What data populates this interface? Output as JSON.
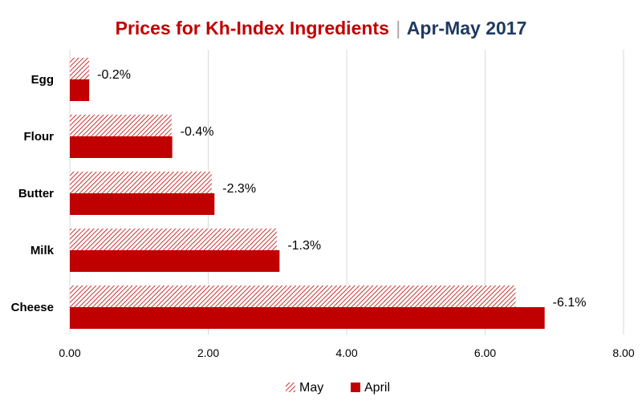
{
  "title": {
    "main": "Prices for Kh-Index Ingredients",
    "separator": "|",
    "period": "Apr-May 2017"
  },
  "chart_data": {
    "type": "bar",
    "orientation": "horizontal",
    "categories": [
      "Egg",
      "Flour",
      "Butter",
      "Milk",
      "Cheese"
    ],
    "series": [
      {
        "name": "May",
        "values": [
          0.28,
          1.47,
          2.05,
          2.99,
          6.44
        ],
        "color": "#c00000",
        "pattern": "diagonal-hatch"
      },
      {
        "name": "April",
        "values": [
          0.28,
          1.48,
          2.09,
          3.03,
          6.86
        ],
        "color": "#c00000",
        "pattern": "solid"
      }
    ],
    "data_labels": [
      "-0.2%",
      "-0.4%",
      "-2.3%",
      "-1.3%",
      "-6.1%"
    ],
    "x_ticks": [
      "0.00",
      "2.00",
      "4.00",
      "6.00",
      "8.00"
    ],
    "xlim": [
      0,
      8
    ],
    "grid": "vertical",
    "legend_position": "bottom"
  }
}
